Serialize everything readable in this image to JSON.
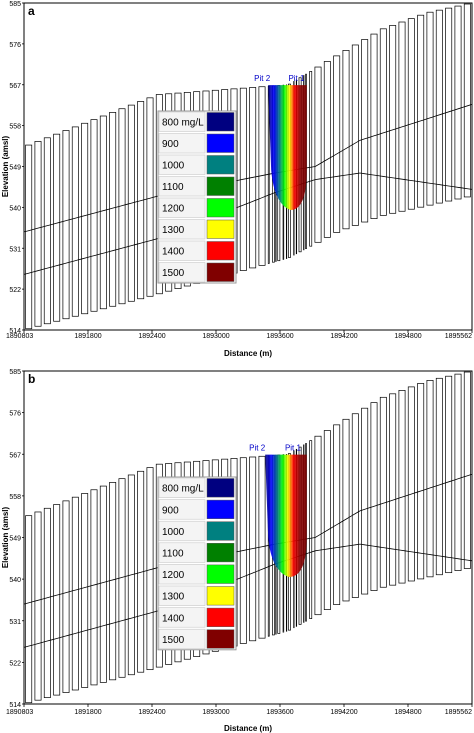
{
  "chart_data": [
    {
      "type": "cross-section",
      "panel_label": "a",
      "xlabel": "Distance (m)",
      "ylabel": "Elevation (amsl)",
      "x_ticks": [
        "1890803",
        "1891800",
        "1892400",
        "1893000",
        "1893600",
        "1894200",
        "1894800",
        "1895562"
      ],
      "y_ticks": [
        "514",
        "522",
        "531",
        "540",
        "549",
        "558",
        "567",
        "576",
        "585"
      ],
      "xlim": [
        1890803,
        1895562
      ],
      "ylim": [
        514,
        585
      ],
      "pits": [
        "Pit 2",
        "Pit 1"
      ],
      "legend": [
        {
          "label": "800 mg/L",
          "color": "#000080"
        },
        {
          "label": "900",
          "color": "#0000ff"
        },
        {
          "label": "1000",
          "color": "#008080"
        },
        {
          "label": "1100",
          "color": "#008000"
        },
        {
          "label": "1200",
          "color": "#00ff00"
        },
        {
          "label": "1300",
          "color": "#ffff00"
        },
        {
          "label": "1400",
          "color": "#ff0000"
        },
        {
          "label": "1500",
          "color": "#800000"
        }
      ]
    },
    {
      "type": "cross-section",
      "panel_label": "b",
      "xlabel": "Distance (m)",
      "ylabel": "Elevation (amsl)",
      "x_ticks": [
        "1890803",
        "1891800",
        "1892400",
        "1893000",
        "1893600",
        "1894200",
        "1894800",
        "1895562"
      ],
      "y_ticks": [
        "514",
        "522",
        "531",
        "540",
        "549",
        "558",
        "567",
        "576",
        "585"
      ],
      "xlim": [
        1890803,
        1895562
      ],
      "ylim": [
        514,
        585
      ],
      "pits": [
        "Pit 2",
        "Pit 1"
      ],
      "legend": [
        {
          "label": "800 mg/L",
          "color": "#000080"
        },
        {
          "label": "900",
          "color": "#0000ff"
        },
        {
          "label": "1000",
          "color": "#008080"
        },
        {
          "label": "1100",
          "color": "#008000"
        },
        {
          "label": "1200",
          "color": "#00ff00"
        },
        {
          "label": "1300",
          "color": "#ffff00"
        },
        {
          "label": "1400",
          "color": "#ff0000"
        },
        {
          "label": "1500",
          "color": "#800000"
        }
      ]
    }
  ]
}
